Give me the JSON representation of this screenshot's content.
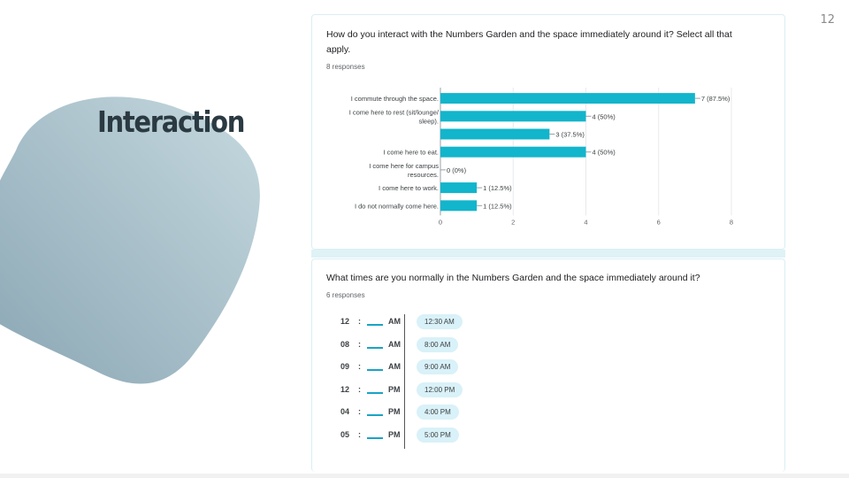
{
  "page_number": "12",
  "slide_title": "Interaction",
  "colors": {
    "bar": "#12b5cb",
    "blob_start": "#8ea9b6",
    "blob_end": "#c5d8de",
    "chip": "#d9f1f8"
  },
  "card1": {
    "question": "How do you interact with the Numbers Garden and the space immediately around it? Select all that apply.",
    "responses": "8 responses"
  },
  "card2": {
    "question": "What times are you normally in the Numbers Garden and the space immediately around it?",
    "responses": "6 responses",
    "times": [
      {
        "hour": "12",
        "period": "AM",
        "chip": "12:30 AM"
      },
      {
        "hour": "08",
        "period": "AM",
        "chip": "8:00 AM"
      },
      {
        "hour": "09",
        "period": "AM",
        "chip": "9:00 AM"
      },
      {
        "hour": "12",
        "period": "PM",
        "chip": "12:00 PM"
      },
      {
        "hour": "04",
        "period": "PM",
        "chip": "4:00 PM"
      },
      {
        "hour": "05",
        "period": "PM",
        "chip": "5:00 PM"
      }
    ]
  },
  "chart_data": {
    "type": "bar",
    "orientation": "horizontal",
    "categories": [
      [
        "I commute through the space."
      ],
      [
        "I come here to rest (sit/lounge/",
        "sleep)."
      ],
      [
        ""
      ],
      [
        "I come here to eat."
      ],
      [
        "I come here for campus",
        "resources."
      ],
      [
        "I come here to work."
      ],
      [
        "I do not normally come here."
      ]
    ],
    "values": [
      7,
      4,
      3,
      4,
      0,
      1,
      1
    ],
    "value_labels": [
      "7 (87.5%)",
      "4 (50%)",
      "3 (37.5%)",
      "4 (50%)",
      "0 (0%)",
      "1 (12.5%)",
      "1 (12.5%)"
    ],
    "xlim": [
      0,
      8
    ],
    "xticks": [
      "0",
      "2",
      "4",
      "6",
      "8"
    ],
    "grid": true
  }
}
